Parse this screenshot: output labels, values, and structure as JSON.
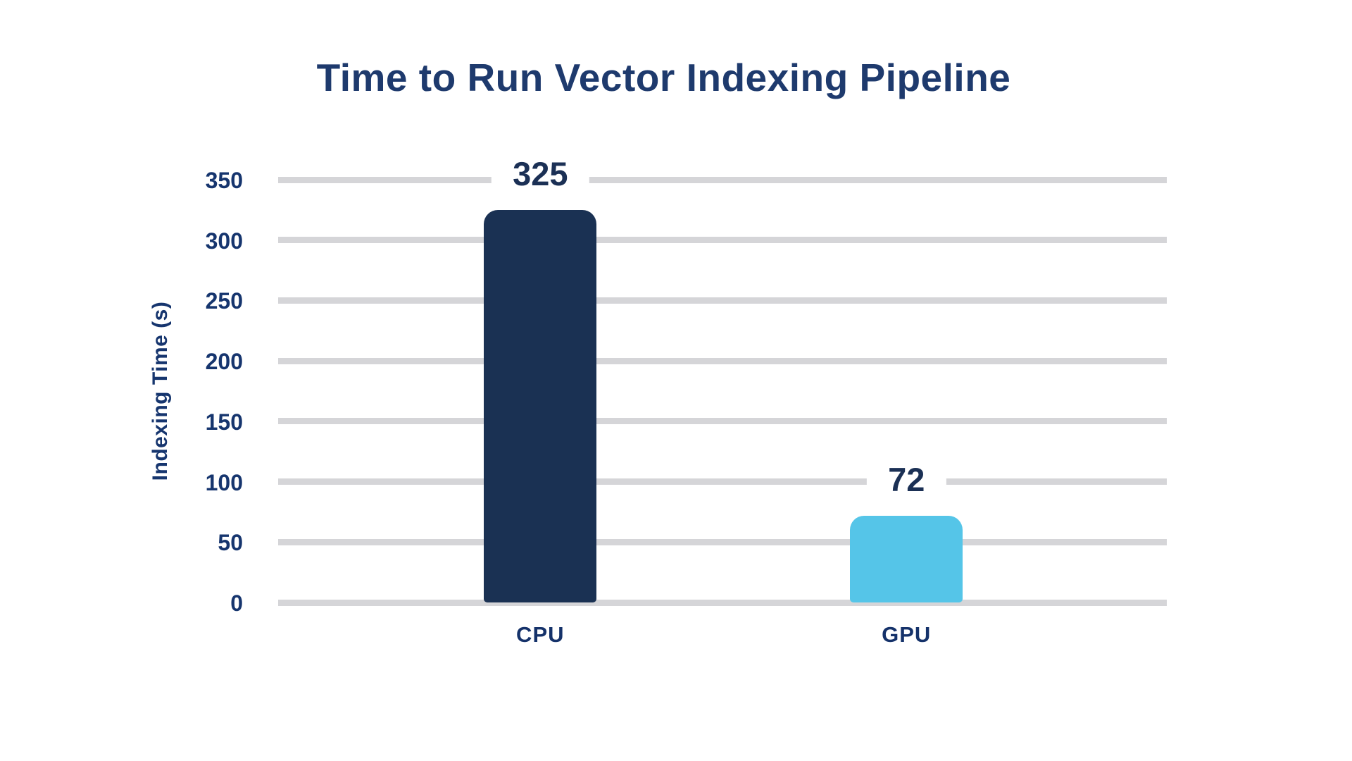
{
  "chart_data": {
    "type": "bar",
    "title": "Time to Run Vector Indexing Pipeline",
    "categories": [
      "CPU",
      "GPU"
    ],
    "values": [
      325,
      72
    ],
    "value_labels": [
      "325",
      "72"
    ],
    "xlabel": "",
    "ylabel": "Indexing Time (s)",
    "ylim": [
      0,
      350
    ],
    "ytick_step": 50,
    "yticks": [
      350,
      300,
      250,
      200,
      150,
      100,
      50,
      0
    ],
    "grid": "horizontal-only",
    "legend_position": "none",
    "bar_colors": [
      "#1A3153",
      "#55C5E8"
    ],
    "colors": {
      "title_text": "#1E3A6D",
      "axis_text": "#16356E",
      "value_text": "#1B3055",
      "gridline": "#D5D5D8",
      "background": "#FFFFFF"
    }
  }
}
